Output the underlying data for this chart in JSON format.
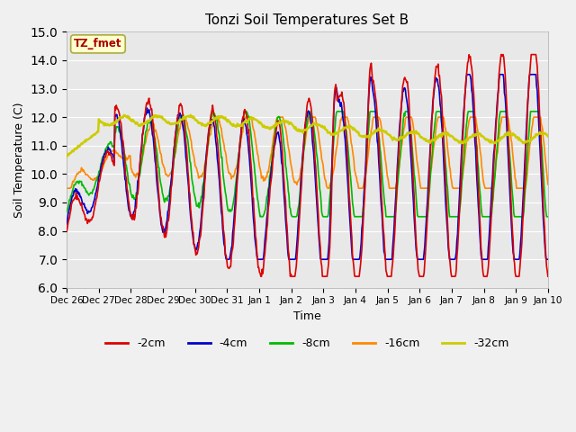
{
  "title": "Tonzi Soil Temperatures Set B",
  "xlabel": "Time",
  "ylabel": "Soil Temperature (C)",
  "ylim": [
    6.0,
    15.0
  ],
  "yticks": [
    6.0,
    7.0,
    8.0,
    9.0,
    10.0,
    11.0,
    12.0,
    13.0,
    14.0,
    15.0
  ],
  "fig_bg_color": "#f0f0f0",
  "ax_bg_color": "#e8e8e8",
  "grid_color": "#ffffff",
  "annotation_text": "TZ_fmet",
  "annotation_color": "#aa0000",
  "annotation_bg": "#ffffcc",
  "annotation_edge": "#aaaa44",
  "series_colors": {
    "-2cm": "#dd0000",
    "-4cm": "#0000cc",
    "-8cm": "#00bb00",
    "-16cm": "#ff8800",
    "-32cm": "#cccc00"
  },
  "series_lw": {
    "-2cm": 1.2,
    "-4cm": 1.2,
    "-8cm": 1.2,
    "-16cm": 1.2,
    "-32cm": 1.8
  },
  "xtick_labels": [
    "Dec 26",
    "Dec 27",
    "Dec 28",
    "Dec 29",
    "Dec 30",
    "Dec 31",
    "Jan 1",
    "Jan 2",
    "Jan 3",
    "Jan 4",
    "Jan 5",
    "Jan 6",
    "Jan 7",
    "Jan 8",
    "Jan 9",
    "Jan 10"
  ],
  "legend_labels": [
    "-2cm",
    "-4cm",
    "-8cm",
    "-16cm",
    "-32cm"
  ]
}
